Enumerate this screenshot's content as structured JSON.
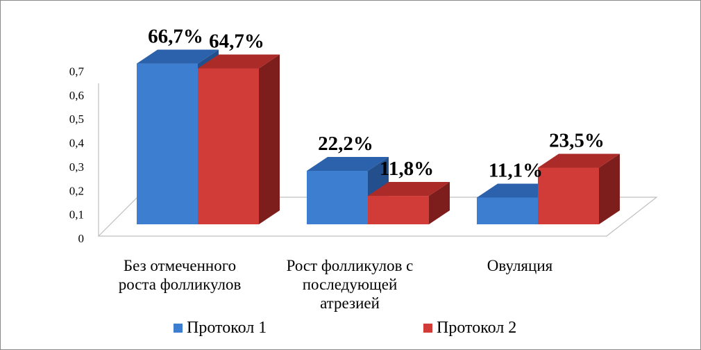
{
  "chart_data": {
    "type": "bar",
    "categories": [
      [
        "Без отмеченного",
        "роста фолликулов"
      ],
      [
        "Рост фолликулов с",
        "последующей",
        "атрезией"
      ],
      [
        "Овуляция"
      ]
    ],
    "series": [
      {
        "name": "Протокол 1",
        "values": [
          0.667,
          0.222,
          0.111
        ],
        "labels": [
          "66,7%",
          "22,2%",
          "11,1%"
        ]
      },
      {
        "name": "Протокол 2",
        "values": [
          0.647,
          0.118,
          0.235
        ],
        "labels": [
          "64,7%",
          "11,8%",
          "23,5%"
        ]
      }
    ],
    "yticks": [
      "0",
      "0,1",
      "0,2",
      "0,3",
      "0,4",
      "0,5",
      "0,6",
      "0,7"
    ],
    "ylim": [
      0,
      0.7
    ],
    "legend": "bottom",
    "colors": {
      "series1": {
        "front": "#3d7ed0",
        "top": "#2c62ab",
        "side": "#234f8d"
      },
      "series2": {
        "front": "#d23c38",
        "top": "#aa2b28",
        "side": "#7e1e1c"
      }
    }
  }
}
